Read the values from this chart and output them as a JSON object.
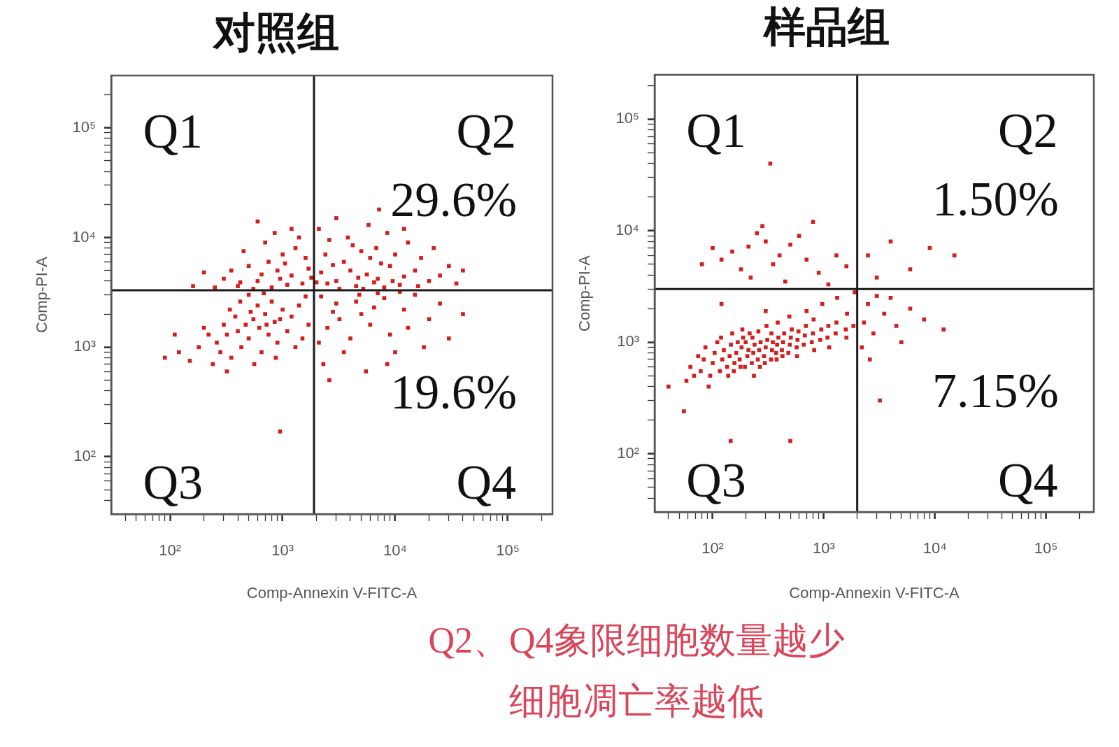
{
  "chart_data": [
    {
      "type": "scatter",
      "title": "对照组",
      "xlabel": "Comp-Annexin V-FITC-A",
      "ylabel": "Comp-PI-A",
      "log": "xy",
      "xlim": [
        30,
        250000
      ],
      "ylim": [
        30,
        300000
      ],
      "grid": false,
      "legend": false,
      "marker": "square",
      "color": "#d11f1f",
      "xticks": [
        {
          "value": 40,
          "label": null
        },
        {
          "value": 50,
          "label": null
        },
        {
          "value": 60,
          "label": null
        },
        {
          "value": 70,
          "label": null
        },
        {
          "value": 80,
          "label": null
        },
        {
          "value": 90,
          "label": null
        },
        {
          "value": 100,
          "label": "10²"
        },
        {
          "value": 200,
          "label": null
        },
        {
          "value": 300,
          "label": null
        },
        {
          "value": 400,
          "label": null
        },
        {
          "value": 500,
          "label": null
        },
        {
          "value": 600,
          "label": null
        },
        {
          "value": 700,
          "label": null
        },
        {
          "value": 800,
          "label": null
        },
        {
          "value": 900,
          "label": null
        },
        {
          "value": 1000,
          "label": "10³"
        },
        {
          "value": 2000,
          "label": null
        },
        {
          "value": 3000,
          "label": null
        },
        {
          "value": 4000,
          "label": null
        },
        {
          "value": 5000,
          "label": null
        },
        {
          "value": 6000,
          "label": null
        },
        {
          "value": 7000,
          "label": null
        },
        {
          "value": 8000,
          "label": null
        },
        {
          "value": 9000,
          "label": null
        },
        {
          "value": 10000,
          "label": "10⁴"
        },
        {
          "value": 20000,
          "label": null
        },
        {
          "value": 30000,
          "label": null
        },
        {
          "value": 40000,
          "label": null
        },
        {
          "value": 50000,
          "label": null
        },
        {
          "value": 60000,
          "label": null
        },
        {
          "value": 70000,
          "label": null
        },
        {
          "value": 80000,
          "label": null
        },
        {
          "value": 90000,
          "label": null
        },
        {
          "value": 100000,
          "label": "10⁵"
        },
        {
          "value": 200000,
          "label": null
        }
      ],
      "yticks": [
        {
          "value": 40,
          "label": null
        },
        {
          "value": 50,
          "label": null
        },
        {
          "value": 60,
          "label": null
        },
        {
          "value": 70,
          "label": null
        },
        {
          "value": 80,
          "label": null
        },
        {
          "value": 90,
          "label": null
        },
        {
          "value": 100,
          "label": "10²"
        },
        {
          "value": 200,
          "label": null
        },
        {
          "value": 300,
          "label": null
        },
        {
          "value": 400,
          "label": null
        },
        {
          "value": 500,
          "label": null
        },
        {
          "value": 600,
          "label": null
        },
        {
          "value": 700,
          "label": null
        },
        {
          "value": 800,
          "label": null
        },
        {
          "value": 900,
          "label": null
        },
        {
          "value": 1000,
          "label": "10³"
        },
        {
          "value": 2000,
          "label": null
        },
        {
          "value": 3000,
          "label": null
        },
        {
          "value": 4000,
          "label": null
        },
        {
          "value": 5000,
          "label": null
        },
        {
          "value": 6000,
          "label": null
        },
        {
          "value": 7000,
          "label": null
        },
        {
          "value": 8000,
          "label": null
        },
        {
          "value": 9000,
          "label": null
        },
        {
          "value": 10000,
          "label": "10⁴"
        },
        {
          "value": 20000,
          "label": null
        },
        {
          "value": 30000,
          "label": null
        },
        {
          "value": 40000,
          "label": null
        },
        {
          "value": 50000,
          "label": null
        },
        {
          "value": 60000,
          "label": null
        },
        {
          "value": 70000,
          "label": null
        },
        {
          "value": 80000,
          "label": null
        },
        {
          "value": 90000,
          "label": null
        },
        {
          "value": 100000,
          "label": "10⁵"
        },
        {
          "value": 200000,
          "label": null
        }
      ],
      "ref_lines": [
        {
          "axis": "x",
          "value": 1900,
          "color": "#1a1a1a"
        },
        {
          "axis": "y",
          "value": 3300,
          "color": "#1a1a1a"
        }
      ],
      "annotations": [
        "Q1",
        "Q2",
        "29.6%",
        "19.6%",
        "Q3",
        "Q4"
      ],
      "x": [
        470,
        400,
        550,
        320,
        620,
        380,
        700,
        260,
        500,
        850,
        300,
        430,
        600,
        750,
        350,
        1000,
        220,
        520,
        900,
        280,
        650,
        1200,
        420,
        180,
        800,
        1400,
        340,
        560,
        1100,
        240,
        1600,
        720,
        950,
        200,
        1300,
        150,
        1700,
        500,
        320,
        870,
        1500,
        680,
        120,
        90,
        110,
        950,
        600,
        900,
        400,
        1200,
        750,
        1500,
        300,
        1000,
        500,
        1700,
        800,
        1300,
        650,
        450,
        1100,
        250,
        1600,
        950,
        350,
        1400,
        700,
        550,
        1800,
        200,
        1200,
        850,
        420,
        1050,
        160,
        600,
        5600,
        4000,
        7000,
        3000,
        9000,
        2500,
        6000,
        12000,
        4500,
        8000,
        3500,
        15000,
        2200,
        5000,
        10000,
        20000,
        3200,
        6500,
        2800,
        11000,
        4200,
        7500,
        17000,
        2400,
        13000,
        5200,
        25000,
        3800,
        8500,
        2000,
        30000,
        6800,
        4700,
        9500,
        2600,
        16000,
        35000,
        5800,
        3000,
        12000,
        22000,
        7200,
        2100,
        40000,
        3000,
        5000,
        2500,
        8000,
        4000,
        12000,
        2200,
        6000,
        15000,
        3500,
        9000,
        2800,
        20000,
        7000,
        4500,
        10000,
        2300,
        25000,
        5500,
        3200,
        13000,
        40000,
        18000,
        6500,
        2600,
        30000,
        8500,
        4800,
        11000,
        2100
      ],
      "values": [
        1600,
        1400,
        1800,
        1300,
        1500,
        1900,
        2000,
        1100,
        1200,
        1700,
        1600,
        1000,
        2400,
        1300,
        800,
        2200,
        1300,
        2100,
        1100,
        900,
        900,
        1900,
        2600,
        1000,
        2600,
        2400,
        2200,
        700,
        1400,
        700,
        2900,
        1600,
        1800,
        1500,
        1000,
        750,
        1600,
        3000,
        600,
        800,
        1200,
        3100,
        900,
        800,
        1300,
        170,
        4000,
        5000,
        3600,
        4500,
        6000,
        3800,
        4200,
        7000,
        5500,
        5200,
        3500,
        8000,
        4600,
        7500,
        3700,
        3500,
        6500,
        4200,
        5000,
        10000,
        9000,
        3400,
        4300,
        4800,
        12000,
        11000,
        3900,
        5800,
        3600,
        14000,
        4600,
        5000,
        4200,
        4000,
        5500,
        3800,
        6500,
        4400,
        3600,
        3500,
        6000,
        5000,
        4800,
        7500,
        7000,
        4000,
        3400,
        3900,
        5600,
        3700,
        8500,
        5800,
        6500,
        7000,
        9000,
        3400,
        4500,
        10000,
        11000,
        3900,
        5500,
        8000,
        4300,
        4000,
        9500,
        3600,
        3800,
        13000,
        15000,
        12000,
        8000,
        18000,
        12000,
        5000,
        2500,
        2000,
        1500,
        2800,
        1200,
        2200,
        2900,
        1600,
        3000,
        900,
        1300,
        2100,
        1800,
        3100,
        2600,
        900,
        700,
        2500,
        600,
        1800,
        1500,
        2000,
        1000,
        2300,
        500,
        1200,
        700,
        3000,
        3200,
        1100
      ]
    },
    {
      "type": "scatter",
      "title": "样品组",
      "xlabel": "Comp-Annexin V-FITC-A",
      "ylabel": "Comp-PI-A",
      "log": "xy",
      "xlim": [
        30,
        270000
      ],
      "ylim": [
        30,
        250000
      ],
      "grid": false,
      "legend": false,
      "marker": "square",
      "color": "#d11f1f",
      "xticks": [
        {
          "value": 40,
          "label": null
        },
        {
          "value": 50,
          "label": null
        },
        {
          "value": 60,
          "label": null
        },
        {
          "value": 70,
          "label": null
        },
        {
          "value": 80,
          "label": null
        },
        {
          "value": 90,
          "label": null
        },
        {
          "value": 100,
          "label": "10²"
        },
        {
          "value": 200,
          "label": null
        },
        {
          "value": 300,
          "label": null
        },
        {
          "value": 400,
          "label": null
        },
        {
          "value": 500,
          "label": null
        },
        {
          "value": 600,
          "label": null
        },
        {
          "value": 700,
          "label": null
        },
        {
          "value": 800,
          "label": null
        },
        {
          "value": 900,
          "label": null
        },
        {
          "value": 1000,
          "label": "10³"
        },
        {
          "value": 2000,
          "label": null
        },
        {
          "value": 3000,
          "label": null
        },
        {
          "value": 4000,
          "label": null
        },
        {
          "value": 5000,
          "label": null
        },
        {
          "value": 6000,
          "label": null
        },
        {
          "value": 7000,
          "label": null
        },
        {
          "value": 8000,
          "label": null
        },
        {
          "value": 9000,
          "label": null
        },
        {
          "value": 10000,
          "label": "10⁴"
        },
        {
          "value": 20000,
          "label": null
        },
        {
          "value": 30000,
          "label": null
        },
        {
          "value": 40000,
          "label": null
        },
        {
          "value": 50000,
          "label": null
        },
        {
          "value": 60000,
          "label": null
        },
        {
          "value": 70000,
          "label": null
        },
        {
          "value": 80000,
          "label": null
        },
        {
          "value": 90000,
          "label": null
        },
        {
          "value": 100000,
          "label": "10⁵"
        },
        {
          "value": 200000,
          "label": null
        }
      ],
      "yticks": [
        {
          "value": 40,
          "label": null
        },
        {
          "value": 50,
          "label": null
        },
        {
          "value": 60,
          "label": null
        },
        {
          "value": 70,
          "label": null
        },
        {
          "value": 80,
          "label": null
        },
        {
          "value": 90,
          "label": null
        },
        {
          "value": 100,
          "label": "10²"
        },
        {
          "value": 200,
          "label": null
        },
        {
          "value": 300,
          "label": null
        },
        {
          "value": 400,
          "label": null
        },
        {
          "value": 500,
          "label": null
        },
        {
          "value": 600,
          "label": null
        },
        {
          "value": 700,
          "label": null
        },
        {
          "value": 800,
          "label": null
        },
        {
          "value": 900,
          "label": null
        },
        {
          "value": 1000,
          "label": "10³"
        },
        {
          "value": 2000,
          "label": null
        },
        {
          "value": 3000,
          "label": null
        },
        {
          "value": 4000,
          "label": null
        },
        {
          "value": 5000,
          "label": null
        },
        {
          "value": 6000,
          "label": null
        },
        {
          "value": 7000,
          "label": null
        },
        {
          "value": 8000,
          "label": null
        },
        {
          "value": 9000,
          "label": null
        },
        {
          "value": 10000,
          "label": "10⁴"
        },
        {
          "value": 20000,
          "label": null
        },
        {
          "value": 30000,
          "label": null
        },
        {
          "value": 40000,
          "label": null
        },
        {
          "value": 50000,
          "label": null
        },
        {
          "value": 60000,
          "label": null
        },
        {
          "value": 70000,
          "label": null
        },
        {
          "value": 80000,
          "label": null
        },
        {
          "value": 90000,
          "label": null
        },
        {
          "value": 100000,
          "label": "10⁵"
        },
        {
          "value": 200000,
          "label": null
        }
      ],
      "ref_lines": [
        {
          "axis": "x",
          "value": 2000,
          "color": "#1a1a1a"
        },
        {
          "axis": "y",
          "value": 3000,
          "color": "#1a1a1a"
        }
      ],
      "annotations": [
        "Q1",
        "Q2",
        "1.50%",
        "7.15%",
        "Q3",
        "Q4"
      ],
      "x": [
        58,
        63,
        68,
        74,
        78,
        83,
        86,
        95,
        100,
        104,
        110,
        92,
        116,
        122,
        126,
        119,
        135,
        142,
        146,
        138,
        150,
        157,
        163,
        168,
        155,
        175,
        182,
        188,
        178,
        185,
        195,
        205,
        210,
        198,
        215,
        225,
        232,
        238,
        228,
        235,
        255,
        262,
        270,
        258,
        266,
        290,
        300,
        310,
        295,
        305,
        335,
        342,
        348,
        338,
        372,
        380,
        390,
        376,
        385,
        420,
        430,
        440,
        425,
        480,
        495,
        505,
        515,
        490,
        570,
        580,
        592,
        575,
        660,
        675,
        690,
        700,
        780,
        800,
        820,
        810,
        930,
        950,
        970,
        1080,
        1100,
        1120,
        1280,
        1300,
        1320,
        1580,
        1600,
        1620,
        1850,
        1900,
        145,
        500,
        55,
        40,
        300,
        120,
        210,
        150,
        300,
        120,
        400,
        250,
        180,
        500,
        350,
        100,
        700,
        280,
        900,
        600,
        1300,
        450,
        1600,
        220,
        800,
        330,
        1100,
        80,
        2500,
        4000,
        6000,
        3000,
        9000,
        15000,
        2300,
        2800,
        3500,
        2500,
        4500,
        3000,
        6000,
        2200,
        8000,
        4000,
        5000,
        2600,
        12000,
        3200
      ],
      "values": [
        450,
        600,
        500,
        750,
        550,
        700,
        900,
        500,
        650,
        800,
        1000,
        400,
        550,
        700,
        850,
        1100,
        600,
        750,
        950,
        500,
        1200,
        650,
        800,
        1000,
        550,
        700,
        900,
        1100,
        600,
        1300,
        600,
        750,
        850,
        1000,
        1200,
        650,
        800,
        950,
        1100,
        500,
        700,
        850,
        1000,
        1250,
        600,
        750,
        900,
        1050,
        650,
        1400,
        700,
        850,
        1000,
        1200,
        800,
        950,
        1100,
        700,
        1500,
        850,
        1000,
        1200,
        750,
        800,
        950,
        1100,
        1300,
        1700,
        900,
        1050,
        1250,
        750,
        950,
        1150,
        1400,
        1900,
        1000,
        1200,
        850,
        1600,
        1050,
        1300,
        2200,
        1100,
        1400,
        900,
        1200,
        1500,
        2500,
        1300,
        1100,
        1800,
        1400,
        2800,
        130,
        130,
        240,
        400,
        1900,
        2200,
        7200,
        6500,
        8000,
        5500,
        6000,
        9500,
        4500,
        7500,
        5000,
        7000,
        5500,
        11000,
        4200,
        9000,
        6000,
        3500,
        4800,
        3800,
        12000,
        40000,
        3300,
        5000,
        6000,
        8000,
        4500,
        3800,
        7000,
        6000,
        1500,
        1200,
        1800,
        2200,
        1400,
        2600,
        2000,
        900,
        1600,
        2500,
        1000,
        700,
        1300,
        300
      ]
    },
    {
      "type": "other",
      "color": "#d9455a",
      "annotations": [
        "Q2、Q4象限细胞数量越少",
        "细胞凋亡率越低"
      ]
    }
  ]
}
